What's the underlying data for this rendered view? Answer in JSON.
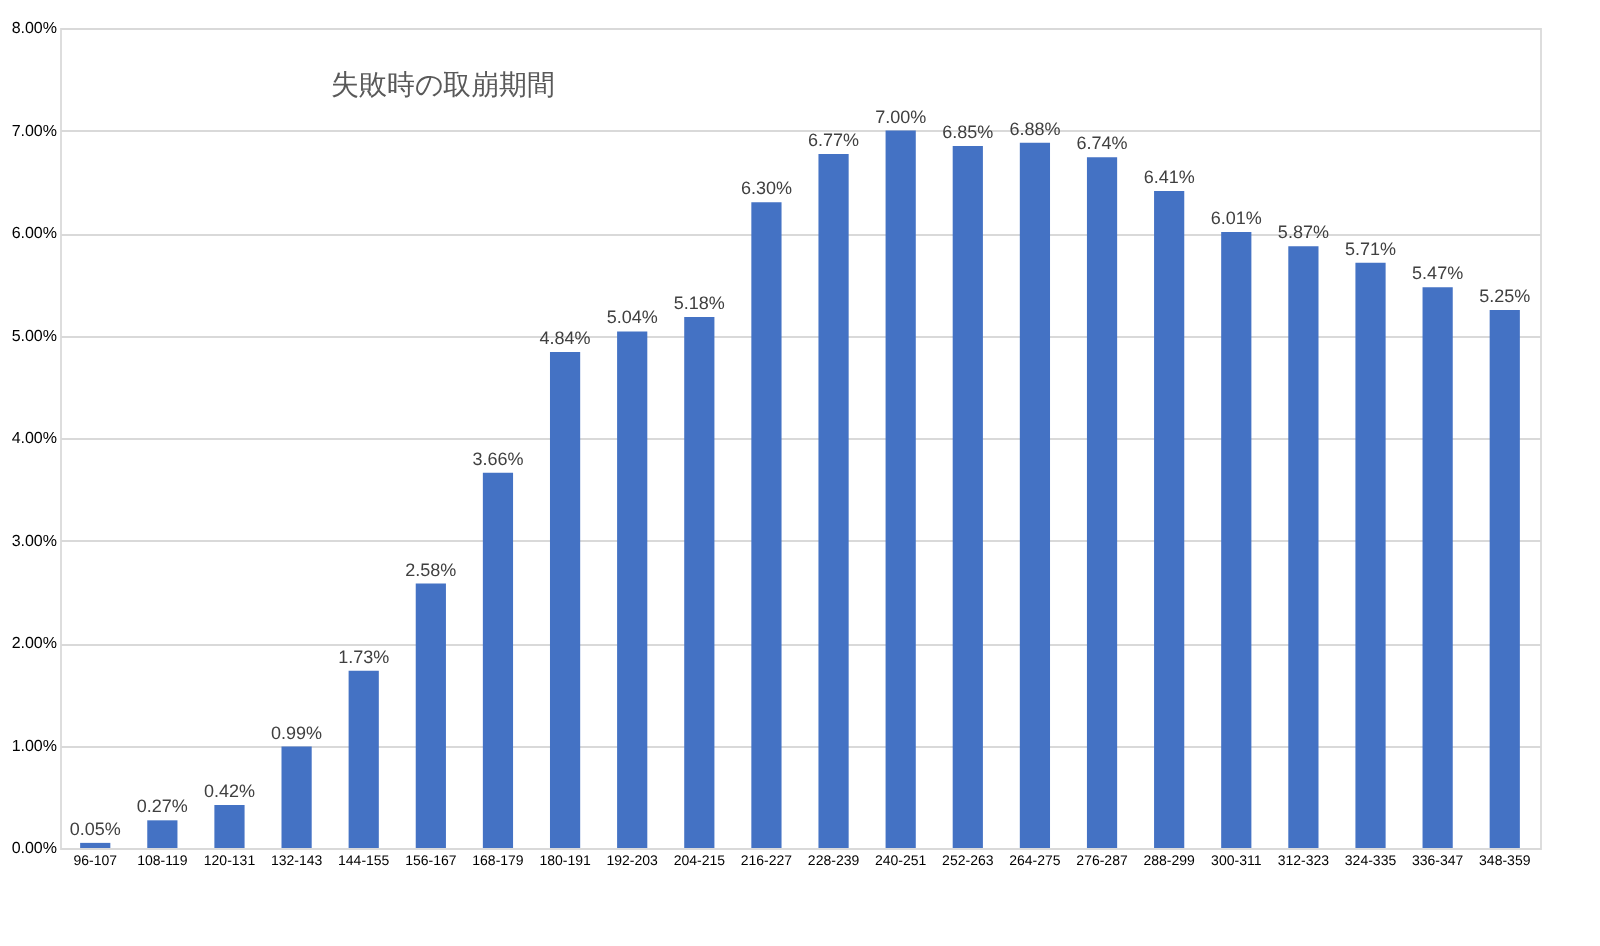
{
  "chart_data": {
    "type": "bar",
    "title": "失敗時の取崩期間",
    "categories": [
      "96-107",
      "108-119",
      "120-131",
      "132-143",
      "144-155",
      "156-167",
      "168-179",
      "180-191",
      "192-203",
      "204-215",
      "216-227",
      "228-239",
      "240-251",
      "252-263",
      "264-275",
      "276-287",
      "288-299",
      "300-311",
      "312-323",
      "324-335",
      "336-347",
      "348-359"
    ],
    "values": [
      0.05,
      0.27,
      0.42,
      0.99,
      1.73,
      2.58,
      3.66,
      4.84,
      5.04,
      5.18,
      6.3,
      6.77,
      7.0,
      6.85,
      6.88,
      6.74,
      6.41,
      6.01,
      5.87,
      5.71,
      5.47,
      5.25
    ],
    "value_labels": [
      "0.05%",
      "0.27%",
      "0.42%",
      "0.99%",
      "1.73%",
      "2.58%",
      "3.66%",
      "4.84%",
      "5.04%",
      "5.18%",
      "6.30%",
      "6.77%",
      "7.00%",
      "6.85%",
      "6.88%",
      "6.74%",
      "6.41%",
      "6.01%",
      "5.87%",
      "5.71%",
      "5.47%",
      "5.25%"
    ],
    "color": "#4472c4",
    "ylim": [
      0,
      8
    ],
    "yticks": [
      {
        "value": 0,
        "label": "0.00%"
      },
      {
        "value": 1,
        "label": "1.00%"
      },
      {
        "value": 2,
        "label": "2.00%"
      },
      {
        "value": 3,
        "label": "3.00%"
      },
      {
        "value": 4,
        "label": "4.00%"
      },
      {
        "value": 5,
        "label": "5.00%"
      },
      {
        "value": 6,
        "label": "6.00%"
      },
      {
        "value": 7,
        "label": "7.00%"
      },
      {
        "value": 8,
        "label": "8.00%"
      }
    ],
    "grid": "y"
  }
}
